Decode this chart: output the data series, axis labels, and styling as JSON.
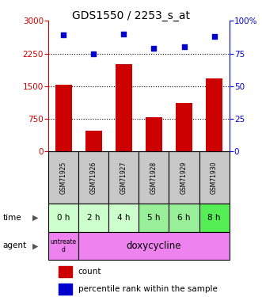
{
  "title": "GDS1550 / 2253_s_at",
  "samples": [
    "GSM71925",
    "GSM71926",
    "GSM71927",
    "GSM71928",
    "GSM71929",
    "GSM71930"
  ],
  "counts": [
    1530,
    480,
    2000,
    780,
    1120,
    1670
  ],
  "percentiles": [
    89,
    75,
    90,
    79,
    80,
    88
  ],
  "left_ylim": [
    0,
    3000
  ],
  "left_yticks": [
    0,
    750,
    1500,
    2250,
    3000
  ],
  "right_ylim": [
    0,
    100
  ],
  "right_yticks": [
    0,
    25,
    50,
    75,
    100
  ],
  "right_yticklabels": [
    "0",
    "25",
    "50",
    "75",
    "100%"
  ],
  "time_labels": [
    "0 h",
    "2 h",
    "4 h",
    "5 h",
    "6 h",
    "8 h"
  ],
  "bar_color": "#CC0000",
  "dot_color": "#0000CC",
  "sample_bg": "#C8C8C8",
  "time_bg_colors": [
    "#CCFFCC",
    "#CCFFCC",
    "#CCFFCC",
    "#99EE99",
    "#99EE99",
    "#55EE55"
  ],
  "agent_untreated_color": "#EE82EE",
  "agent_doxy_color": "#EE82EE",
  "left_label_color": "#CC0000",
  "right_label_color": "#0000CC",
  "dotted_line_y": [
    750,
    1500,
    2250
  ],
  "legend_count_label": "count",
  "legend_pct_label": "percentile rank within the sample"
}
